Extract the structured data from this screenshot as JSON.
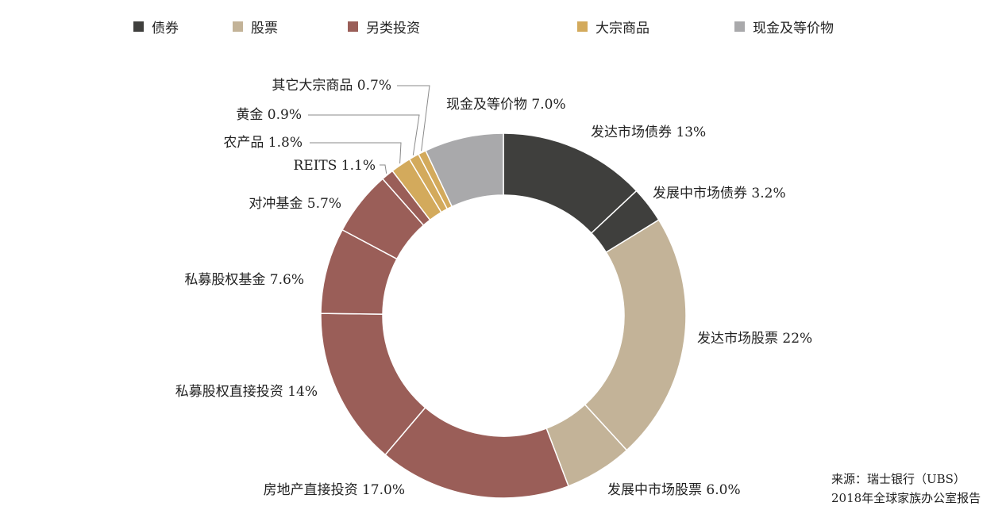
{
  "legend": [
    {
      "label": "债券",
      "color": "#3f3f3d"
    },
    {
      "label": "股票",
      "color": "#c3b398"
    },
    {
      "label": "另类投资",
      "color": "#9a5e58"
    },
    {
      "label": "大宗商品",
      "color": "#d3aa5c"
    },
    {
      "label": "现金及等价物",
      "color": "#a9a9ab"
    }
  ],
  "source": {
    "line1": "来源：瑞士银行（UBS）",
    "line2": "2018年全球家族办公室报告"
  },
  "chart_data": {
    "type": "pie",
    "style": "donut",
    "start": "top",
    "direction": "clockwise",
    "slices": [
      {
        "label": "发达市场债券 13%",
        "value": 13,
        "category": "债券"
      },
      {
        "label": "发展中市场债券 3.2%",
        "value": 3.2,
        "category": "债券"
      },
      {
        "label": "发达市场股票 22%",
        "value": 22,
        "category": "股票"
      },
      {
        "label": "发展中市场股票 6.0%",
        "value": 6.0,
        "category": "股票"
      },
      {
        "label": "房地产直接投资 17.0%",
        "value": 17.0,
        "category": "另类投资"
      },
      {
        "label": "私募股权直接投资 14%",
        "value": 14,
        "category": "另类投资"
      },
      {
        "label": "私募股权基金 7.6%",
        "value": 7.6,
        "category": "另类投资"
      },
      {
        "label": "对冲基金 5.7%",
        "value": 5.7,
        "category": "另类投资"
      },
      {
        "label": "REITS 1.1%",
        "value": 1.1,
        "category": "另类投资"
      },
      {
        "label": "农产品 1.8%",
        "value": 1.8,
        "category": "大宗商品"
      },
      {
        "label": "黄金 0.9%",
        "value": 0.9,
        "category": "大宗商品"
      },
      {
        "label": "其它大宗商品 0.7%",
        "value": 0.7,
        "category": "大宗商品"
      },
      {
        "label": "现金及等价物 7.0%",
        "value": 7.0,
        "category": "现金及等价物"
      }
    ]
  }
}
